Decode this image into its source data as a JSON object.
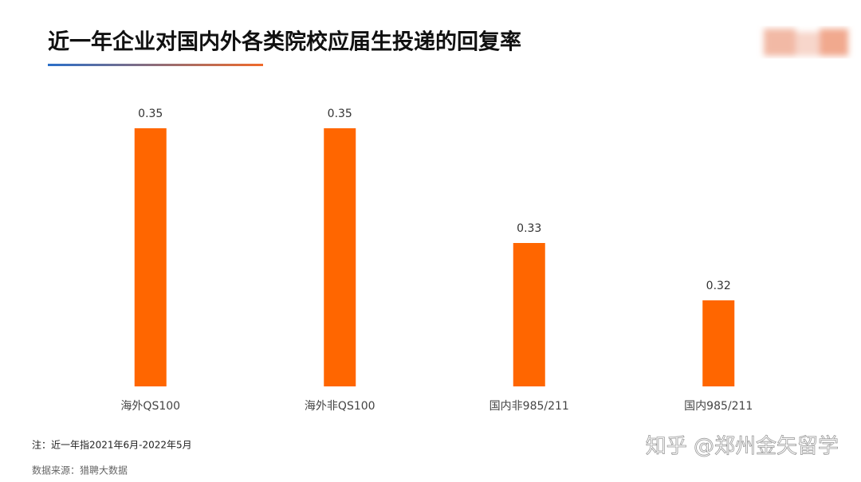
{
  "chart_data": {
    "type": "bar",
    "title": "近一年企业对国内外各类院校应届生投递的回复率",
    "categories": [
      "海外QS100",
      "海外非QS100",
      "国内非985/211",
      "国内985/211"
    ],
    "values": [
      0.35,
      0.35,
      0.33,
      0.32
    ],
    "color": "#ff6600",
    "ylim": [
      0.305,
      0.355
    ],
    "note": "注：近一年指2021年6月-2022年5月",
    "source": "数据来源：猎聘大数据",
    "watermark": "知乎 @郑州金矢留学"
  }
}
